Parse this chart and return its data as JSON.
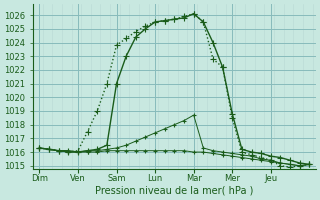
{
  "xlabel": "Pression niveau de la mer( hPa )",
  "bg_color": "#c8e8e0",
  "grid_major_color": "#88bbbb",
  "grid_minor_color": "#b8d8d4",
  "line_color": "#1a5c1a",
  "ylim": [
    1014.8,
    1026.8
  ],
  "yticks": [
    1015,
    1016,
    1017,
    1018,
    1019,
    1020,
    1021,
    1022,
    1023,
    1024,
    1025,
    1026
  ],
  "day_labels": [
    "Dim",
    "Ven",
    "Sam",
    "Lun",
    "Mar",
    "Mer",
    "Jeu"
  ],
  "day_x": [
    0,
    24,
    48,
    72,
    96,
    120,
    144
  ],
  "xlim": [
    -4,
    172
  ],
  "lines": [
    {
      "x": [
        0,
        6,
        12,
        18,
        24,
        30,
        36,
        42,
        48,
        54,
        60,
        66,
        72,
        78,
        84,
        90,
        96,
        102,
        108,
        114,
        120,
        126,
        132,
        138,
        144,
        150,
        156,
        162,
        168
      ],
      "y": [
        1016.3,
        1016.2,
        1016.1,
        1016.1,
        1016.0,
        1016.1,
        1016.2,
        1016.5,
        1021.0,
        1023.0,
        1024.4,
        1025.0,
        1025.5,
        1025.6,
        1025.7,
        1025.8,
        1026.1,
        1025.5,
        1024.0,
        1022.2,
        1018.8,
        1016.2,
        1016.0,
        1015.9,
        1015.7,
        1015.6,
        1015.4,
        1015.2,
        1015.1
      ],
      "style": "-",
      "marker": "+",
      "markersize": 4,
      "linewidth": 1.0
    },
    {
      "x": [
        0,
        6,
        12,
        18,
        24,
        30,
        36,
        42,
        48,
        54,
        60,
        66,
        72,
        78,
        84,
        90,
        96,
        102,
        108,
        114,
        120,
        126,
        132,
        138,
        144,
        150,
        156,
        162,
        168
      ],
      "y": [
        1016.3,
        1016.2,
        1016.1,
        1016.0,
        1016.1,
        1017.5,
        1019.0,
        1021.0,
        1023.8,
        1024.3,
        1024.8,
        1025.2,
        1025.5,
        1025.6,
        1025.7,
        1025.9,
        1026.1,
        1025.5,
        1022.8,
        1022.2,
        1018.5,
        1016.0,
        1015.8,
        1015.6,
        1015.4,
        1015.0,
        1014.9,
        1015.0,
        1015.1
      ],
      "style": ":",
      "marker": "+",
      "markersize": 4,
      "linewidth": 1.0
    },
    {
      "x": [
        0,
        6,
        12,
        18,
        24,
        30,
        36,
        42,
        48,
        54,
        60,
        66,
        72,
        78,
        84,
        90,
        96,
        102,
        108,
        114,
        120,
        126,
        132,
        138,
        144,
        150,
        156,
        162,
        168
      ],
      "y": [
        1016.3,
        1016.2,
        1016.1,
        1016.0,
        1016.0,
        1016.1,
        1016.1,
        1016.2,
        1016.3,
        1016.5,
        1016.8,
        1017.1,
        1017.4,
        1017.7,
        1018.0,
        1018.3,
        1018.7,
        1016.3,
        1016.1,
        1016.0,
        1015.9,
        1015.8,
        1015.7,
        1015.5,
        1015.4,
        1015.2,
        1015.1,
        1015.0,
        1015.1
      ],
      "style": "-",
      "marker": "+",
      "markersize": 3,
      "linewidth": 0.7
    },
    {
      "x": [
        0,
        6,
        12,
        18,
        24,
        30,
        36,
        42,
        48,
        54,
        60,
        66,
        72,
        78,
        84,
        90,
        96,
        102,
        108,
        114,
        120,
        126,
        132,
        138,
        144,
        150,
        156,
        162,
        168
      ],
      "y": [
        1016.3,
        1016.2,
        1016.1,
        1016.0,
        1016.0,
        1016.0,
        1016.0,
        1016.1,
        1016.1,
        1016.1,
        1016.1,
        1016.1,
        1016.1,
        1016.1,
        1016.1,
        1016.1,
        1016.0,
        1016.0,
        1015.9,
        1015.8,
        1015.7,
        1015.6,
        1015.5,
        1015.4,
        1015.3,
        1015.2,
        1015.1,
        1015.0,
        1015.1
      ],
      "style": "-",
      "marker": "+",
      "markersize": 3,
      "linewidth": 0.7
    }
  ]
}
